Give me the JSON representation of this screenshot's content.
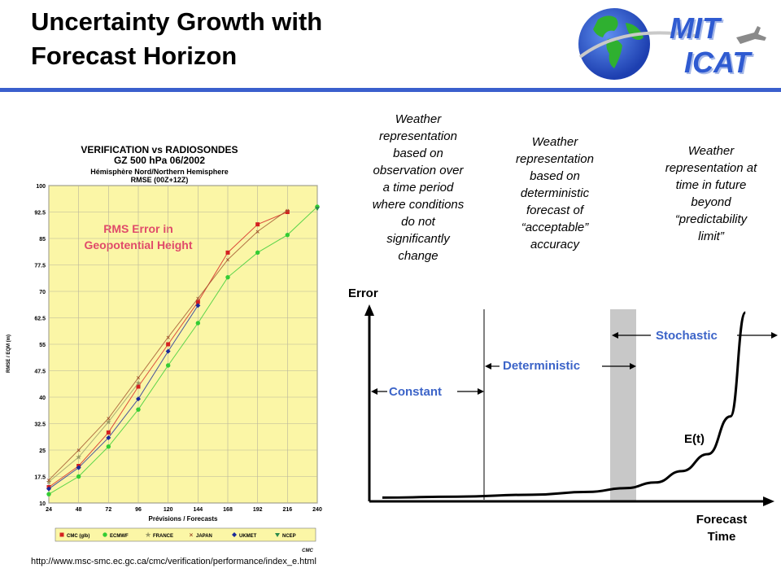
{
  "slide": {
    "title_line1": "Uncertainty Growth with",
    "title_line2": "Forecast Horizon",
    "source_url": "http://www.msc-smc.ec.gc.ca/cmc/verification/performance/index_e.html"
  },
  "logo": {
    "line1": "MIT",
    "line2": "ICAT",
    "accent": "#2f5bd1"
  },
  "verification_chart": {
    "title1": "VERIFICATION vs RADIOSONDES",
    "title2": "GZ 500 hPa 06/2002",
    "subtitle1": "Hémisphère Nord/Northern Hemisphere",
    "subtitle2": "RMSE (00Z+12Z)",
    "ylabel": "RMSE / EQM (m)",
    "xlabel": "Prévisions / Forecasts",
    "annotation1": "RMS Error in",
    "annotation2": "Geopotential Height",
    "credit": "CMC",
    "legend": [
      "CMC (glb)",
      "ECMWF",
      "FRANCE",
      "JAPAN",
      "UKMET",
      "NCEP"
    ]
  },
  "concept_chart": {
    "ylabel": "Error",
    "xlabel1": "Forecast",
    "xlabel2": "Time",
    "curve_label": "E(t)",
    "region_constant": "Constant",
    "region_deterministic": "Deterministic",
    "region_stochastic": "Stochastic",
    "caption_constant": [
      "Weather",
      "representation",
      "based on",
      "observation over",
      "a time period",
      "where conditions",
      "do not",
      "significantly",
      "change"
    ],
    "caption_deterministic": [
      "Weather",
      "representation",
      "based on",
      "deterministic",
      "forecast of",
      "“acceptable”",
      "accuracy"
    ],
    "caption_stochastic": [
      "Weather",
      "representation at",
      "time in future",
      "beyond",
      "“predictability",
      "limit”"
    ]
  },
  "chart_data": [
    {
      "type": "line",
      "title": "VERIFICATION vs RADIOSONDES",
      "subtitle": "GZ 500 hPa 06/2002 — Hémisphère Nord/Northern Hemisphere — RMSE (00Z+12Z)",
      "xlabel": "Prévisions / Forecasts",
      "ylabel": "RMSE / EQM (m)",
      "x": [
        24,
        48,
        72,
        96,
        120,
        144,
        168,
        192,
        216,
        240
      ],
      "x_ticks": [
        24,
        48,
        72,
        96,
        120,
        144,
        168,
        192,
        216,
        240
      ],
      "y_ticks": [
        10,
        17.5,
        25,
        32.5,
        40,
        47.5,
        55,
        62.5,
        70,
        77.5,
        85,
        92.5,
        100
      ],
      "ylim": [
        10,
        100
      ],
      "xlim": [
        24,
        240
      ],
      "grid": true,
      "legend_position": "bottom",
      "series": [
        {
          "name": "CMC (glb)",
          "color": "#d42020",
          "marker": "square",
          "values": [
            14.5,
            20.5,
            30,
            43,
            55,
            67,
            81,
            89,
            92.5,
            null
          ]
        },
        {
          "name": "ECMWF",
          "color": "#33cc33",
          "marker": "circle",
          "values": [
            12.5,
            17.5,
            26,
            36.5,
            49,
            61,
            74,
            81,
            86,
            94
          ]
        },
        {
          "name": "FRANCE",
          "color": "#999966",
          "marker": "star",
          "values": [
            16,
            23,
            33,
            44,
            null,
            null,
            null,
            null,
            null,
            null
          ]
        },
        {
          "name": "JAPAN",
          "color": "#a0522d",
          "marker": "x",
          "values": [
            16.5,
            25,
            34,
            45.5,
            57,
            68,
            79,
            87,
            93,
            null
          ]
        },
        {
          "name": "UKMET",
          "color": "#1a2a99",
          "marker": "diamond",
          "values": [
            14,
            20,
            28.5,
            39.5,
            53,
            66,
            null,
            null,
            null,
            null
          ]
        },
        {
          "name": "NCEP",
          "color": "#2a8a4a",
          "marker": "triangle",
          "values": [
            null,
            null,
            null,
            null,
            null,
            null,
            null,
            null,
            null,
            93.5
          ]
        }
      ]
    },
    {
      "type": "line",
      "title": "",
      "xlabel": "Forecast Time",
      "ylabel": "Error",
      "series": [
        {
          "name": "E(t)",
          "values": [
            0.02,
            0.025,
            0.035,
            0.05,
            0.07,
            0.1,
            0.16,
            0.25,
            0.45,
            1.0
          ],
          "x": [
            0,
            0.2,
            0.4,
            0.55,
            0.65,
            0.73,
            0.8,
            0.87,
            0.93,
            0.97
          ]
        }
      ],
      "annotations": [
        "Constant",
        "Deterministic",
        "Stochastic",
        "E(t)"
      ],
      "axis_ticks": "none"
    }
  ]
}
